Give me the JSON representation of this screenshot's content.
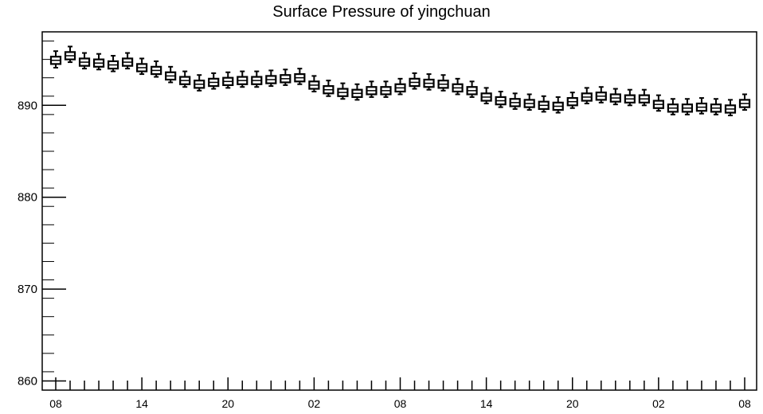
{
  "chart_data": {
    "type": "box",
    "title": "Surface Pressure of yingchuan",
    "xlabel": "",
    "ylabel": "",
    "ylim": [
      859,
      898
    ],
    "y_ticks": [
      860,
      870,
      880,
      890
    ],
    "x_tick_labels": [
      "08",
      "14",
      "20",
      "02",
      "08",
      "14",
      "20",
      "02",
      "08"
    ],
    "x_tick_hours": [
      0,
      6,
      12,
      18,
      24,
      30,
      36,
      42,
      48
    ],
    "grid": false,
    "legend": "none",
    "series": [
      {
        "hours": [
          0,
          1,
          2,
          3,
          4,
          5,
          6,
          7,
          8,
          9,
          10,
          11,
          12,
          13,
          14,
          15,
          16,
          17,
          18,
          19,
          20,
          21,
          22,
          23,
          24,
          25,
          26,
          27,
          28,
          29,
          30,
          31,
          32,
          33,
          34,
          35,
          36,
          37,
          38,
          39,
          40,
          41,
          42,
          43,
          44,
          45,
          46,
          47,
          48
        ],
        "median": [
          894.9,
          895.4,
          894.7,
          894.6,
          894.4,
          894.7,
          894.1,
          893.8,
          893.2,
          892.7,
          892.3,
          892.5,
          892.6,
          892.7,
          892.7,
          892.8,
          892.9,
          893.0,
          892.2,
          891.7,
          891.4,
          891.3,
          891.6,
          891.6,
          891.9,
          892.5,
          892.4,
          892.3,
          891.9,
          891.6,
          890.9,
          890.5,
          890.3,
          890.2,
          890.0,
          889.9,
          890.4,
          890.9,
          891.0,
          890.8,
          890.7,
          890.7,
          890.1,
          889.7,
          889.7,
          889.8,
          889.7,
          889.6,
          890.2
        ],
        "q1": [
          894.5,
          895.0,
          894.3,
          894.2,
          894.0,
          894.3,
          893.7,
          893.4,
          892.8,
          892.3,
          891.9,
          892.1,
          892.2,
          892.3,
          892.3,
          892.4,
          892.5,
          892.6,
          891.8,
          891.3,
          891.0,
          890.9,
          891.2,
          891.2,
          891.5,
          892.1,
          892.0,
          891.9,
          891.5,
          891.2,
          890.5,
          890.1,
          889.9,
          889.8,
          889.6,
          889.5,
          890.0,
          890.5,
          890.6,
          890.4,
          890.3,
          890.3,
          889.7,
          889.3,
          889.3,
          889.4,
          889.3,
          889.2,
          889.8
        ],
        "q3": [
          895.3,
          895.8,
          895.1,
          895.0,
          894.8,
          895.1,
          894.5,
          894.2,
          893.6,
          893.1,
          892.7,
          892.9,
          893.0,
          893.1,
          893.1,
          893.2,
          893.3,
          893.4,
          892.6,
          892.1,
          891.8,
          891.7,
          892.0,
          892.0,
          892.3,
          892.9,
          892.8,
          892.7,
          892.3,
          892.0,
          891.3,
          890.9,
          890.7,
          890.6,
          890.4,
          890.3,
          890.8,
          891.3,
          891.4,
          891.2,
          891.1,
          891.1,
          890.5,
          890.1,
          890.1,
          890.2,
          890.1,
          890.0,
          890.6
        ],
        "min": [
          894.1,
          894.7,
          894.0,
          893.9,
          893.7,
          894.0,
          893.4,
          893.1,
          892.5,
          892.0,
          891.6,
          891.8,
          891.9,
          892.0,
          892.0,
          892.1,
          892.2,
          892.3,
          891.5,
          891.0,
          890.7,
          890.6,
          890.9,
          890.9,
          891.2,
          891.8,
          891.7,
          891.6,
          891.2,
          890.9,
          890.2,
          889.8,
          889.6,
          889.5,
          889.3,
          889.2,
          889.7,
          890.2,
          890.3,
          890.1,
          890.0,
          890.0,
          889.4,
          889.0,
          889.0,
          889.1,
          889.0,
          888.9,
          889.5
        ],
        "max": [
          895.9,
          896.4,
          895.7,
          895.6,
          895.4,
          895.7,
          895.1,
          894.8,
          894.2,
          893.7,
          893.3,
          893.5,
          893.6,
          893.7,
          893.7,
          893.8,
          893.9,
          894.0,
          893.2,
          892.7,
          892.4,
          892.3,
          892.6,
          892.6,
          892.9,
          893.5,
          893.4,
          893.3,
          892.9,
          892.6,
          891.9,
          891.5,
          891.3,
          891.2,
          891.0,
          890.9,
          891.4,
          891.9,
          892.0,
          891.8,
          891.7,
          891.7,
          891.1,
          890.7,
          890.7,
          890.8,
          890.7,
          890.6,
          891.2
        ]
      }
    ]
  }
}
